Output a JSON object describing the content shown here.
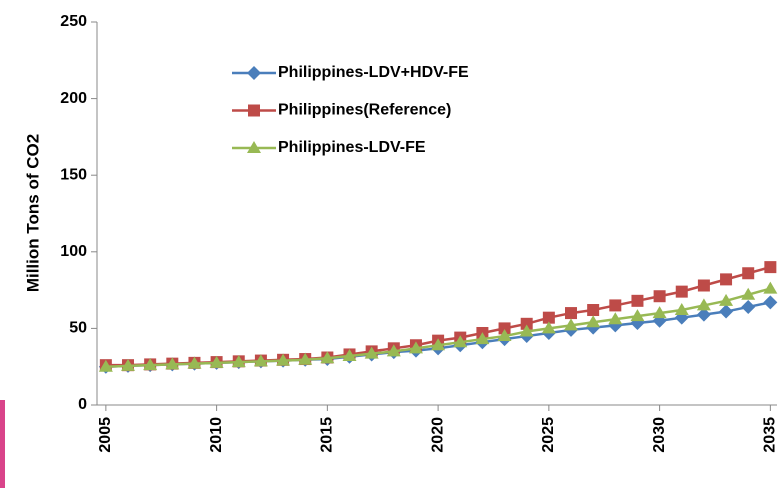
{
  "chart_data": {
    "type": "line",
    "y_label": "Million Tons of CO2",
    "x": [
      2005,
      2006,
      2007,
      2008,
      2009,
      2010,
      2011,
      2012,
      2013,
      2014,
      2015,
      2016,
      2017,
      2018,
      2019,
      2020,
      2021,
      2022,
      2023,
      2024,
      2025,
      2026,
      2027,
      2028,
      2029,
      2030,
      2031,
      2032,
      2033,
      2034,
      2035
    ],
    "series": [
      {
        "name": "Philippines-LDV+HDV-FE",
        "color": "#4a7ebb",
        "marker": "diamond",
        "values": [
          25,
          25.5,
          26,
          26.5,
          27,
          27.5,
          28,
          28.5,
          29,
          29.5,
          30,
          31.5,
          33,
          34.5,
          35.5,
          37,
          39,
          41,
          43,
          45,
          47,
          49,
          50.5,
          52,
          53.5,
          55,
          57,
          59,
          61,
          64,
          67
        ]
      },
      {
        "name": "Philippines(Reference)",
        "color": "#be4b48",
        "marker": "square",
        "values": [
          26,
          26,
          26.5,
          27,
          27.5,
          28,
          28.5,
          29,
          29.5,
          30,
          31,
          33,
          35,
          37,
          39,
          42,
          44,
          47,
          50,
          53,
          57,
          60,
          62,
          65,
          68,
          71,
          74,
          78,
          82,
          86,
          90
        ]
      },
      {
        "name": "Philippines-LDV-FE",
        "color": "#98b954",
        "marker": "triangle",
        "values": [
          25,
          25.5,
          26,
          26.5,
          27,
          27.5,
          28,
          28.5,
          29,
          29.5,
          30.5,
          32,
          33.5,
          35,
          37,
          39,
          41,
          43,
          45,
          48,
          50,
          52,
          54,
          56,
          58,
          60,
          62,
          65,
          68,
          72,
          76
        ]
      }
    ],
    "xlim": [
      2004.6,
      2035.3
    ],
    "xticks": [
      2005,
      2010,
      2015,
      2020,
      2025,
      2030,
      2035
    ],
    "ylim": [
      0,
      250
    ],
    "yticks": [
      0,
      50,
      100,
      150,
      200,
      250
    ],
    "legend": "top"
  }
}
